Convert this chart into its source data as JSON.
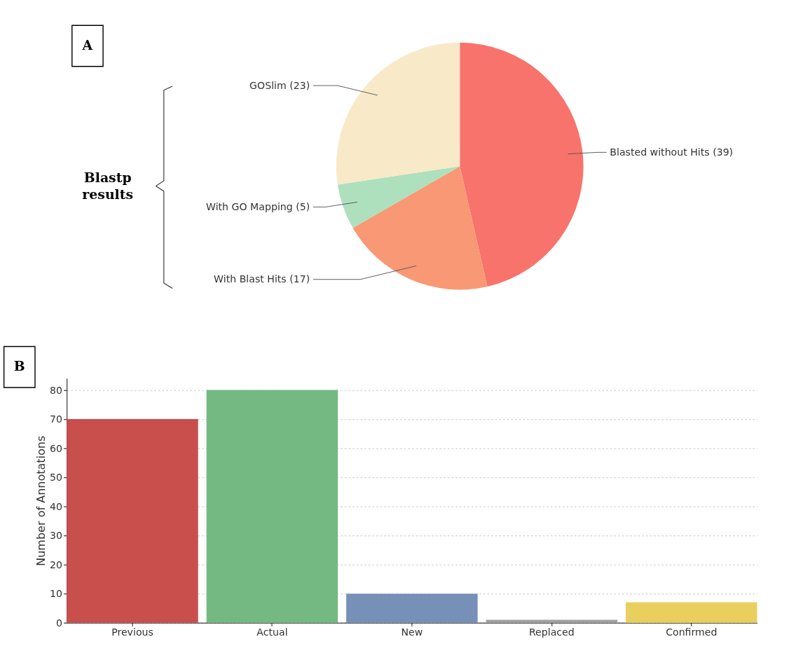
{
  "chart_data": [
    {
      "type": "pie",
      "categories": [
        "Blasted without Hits",
        "With Blast Hits",
        "With GO Mapping",
        "GOSlim"
      ],
      "values": [
        39,
        17,
        5,
        23
      ],
      "colors": [
        "#f8736b",
        "#f99874",
        "#aee0bd",
        "#f8e9c9"
      ],
      "value_labels": [
        "(39)",
        "(17)",
        "(5)",
        "(23)"
      ],
      "annotations": [
        "A",
        "Blastp results"
      ]
    },
    {
      "type": "bar",
      "categories": [
        "Previous",
        "Actual",
        "New",
        "Replaced",
        "Confirmed"
      ],
      "values": [
        70,
        80,
        10,
        1,
        7
      ],
      "colors": [
        "#c84f4c",
        "#73b981",
        "#7690b8",
        "#a0a0a0",
        "#e9cf5e"
      ],
      "ylim": [
        0,
        84
      ],
      "yticks": [
        0,
        10,
        20,
        30,
        40,
        50,
        60,
        70,
        80
      ],
      "ylabel": "Number of Annotations",
      "grid": "y",
      "annotations": [
        "B"
      ]
    }
  ]
}
